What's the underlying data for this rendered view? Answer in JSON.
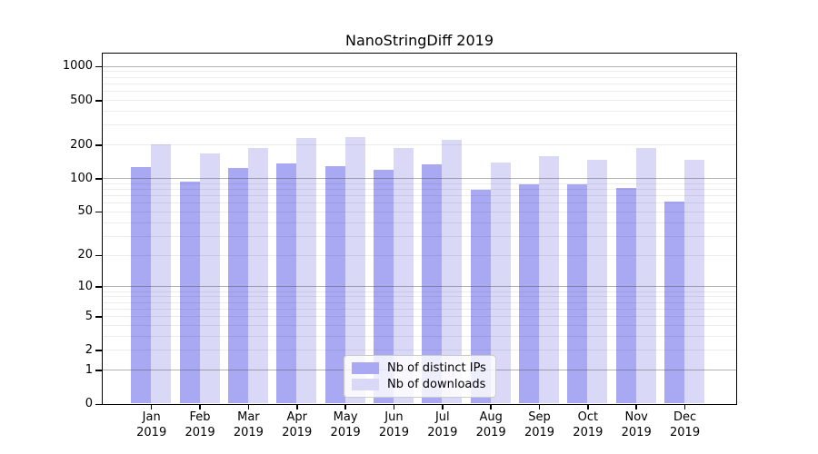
{
  "title": "NanoStringDiff 2019",
  "legend": {
    "items": [
      {
        "label": "Nb of distinct IPs"
      },
      {
        "label": "Nb of downloads"
      }
    ]
  },
  "chart_data": {
    "type": "bar",
    "title": "NanoStringDiff 2019",
    "categories": [
      "Jan 2019",
      "Feb 2019",
      "Mar 2019",
      "Apr 2019",
      "May 2019",
      "Jun 2019",
      "Jul 2019",
      "Aug 2019",
      "Sep 2019",
      "Oct 2019",
      "Nov 2019",
      "Dec 2019"
    ],
    "x_tick_month": [
      "Jan",
      "Feb",
      "Mar",
      "Apr",
      "May",
      "Jun",
      "Jul",
      "Aug",
      "Sep",
      "Oct",
      "Nov",
      "Dec"
    ],
    "x_tick_year": "2019",
    "series": [
      {
        "name": "Nb of distinct IPs",
        "color": "#a9a9f3",
        "values": [
          126,
          93,
          124,
          136,
          128,
          118,
          134,
          78,
          88,
          88,
          82,
          61
        ]
      },
      {
        "name": "Nb of downloads",
        "color": "#d9d9f7",
        "values": [
          200,
          165,
          185,
          228,
          232,
          186,
          220,
          139,
          158,
          145,
          185,
          145
        ]
      }
    ],
    "xlabel": "",
    "ylabel": "",
    "yscale": "log1p",
    "ylim": [
      0,
      1305
    ],
    "y_ticks": [
      0,
      1,
      2,
      5,
      10,
      20,
      50,
      100,
      200,
      500,
      1000
    ],
    "y_major_gridlines": [
      1,
      10,
      100,
      1000
    ],
    "y_minor_gridlines": [
      2,
      3,
      4,
      5,
      6,
      7,
      8,
      9,
      20,
      30,
      40,
      50,
      60,
      70,
      80,
      90,
      200,
      300,
      400,
      500,
      600,
      700,
      800,
      900
    ],
    "grid": true,
    "legend_position": "lower center",
    "colors": {
      "distinct_ips": "#a9a9f3",
      "downloads": "#d9d9f7",
      "major_grid": "#b9b9b9",
      "minor_grid": "#ececec",
      "axis": "#000000"
    }
  }
}
